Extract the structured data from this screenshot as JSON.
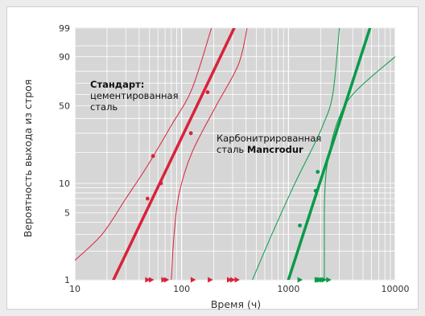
{
  "chart_data": {
    "type": "scatter",
    "title": "",
    "xlabel": "Время (ч)",
    "ylabel": "Вероятность выхода из строя",
    "x_scale": "log",
    "y_scale": "weibull-probability",
    "xlim": [
      10,
      10000
    ],
    "ylim": [
      1,
      99
    ],
    "x_ticks": [
      10,
      100,
      1000,
      10000
    ],
    "y_ticks": [
      1,
      5,
      10,
      50,
      90,
      99
    ],
    "grid": true,
    "annotations": [
      {
        "id": "standard",
        "lines": [
          {
            "text": "Стандарт:",
            "bold": true
          },
          {
            "text": "цементированная",
            "bold": false
          },
          {
            "text": "сталь",
            "bold": false
          }
        ]
      },
      {
        "id": "carbo",
        "lines": [
          {
            "text": "Карбонитрированная",
            "bold": false
          },
          {
            "text": "сталь ",
            "bold": false,
            "suffix": "Mancrodur"
          }
        ]
      }
    ],
    "series": [
      {
        "color": "#d9223a",
        "points": [
          {
            "x": 48,
            "y": 7
          },
          {
            "x": 54,
            "y": 18.5
          },
          {
            "x": 64,
            "y": 10
          },
          {
            "x": 122,
            "y": 30
          },
          {
            "x": 175,
            "y": 62
          }
        ],
        "fit_line": [
          [
            23,
            1
          ],
          [
            310,
            99
          ]
        ],
        "confidence_lower": [
          [
            80,
            1
          ],
          [
            85,
            3
          ],
          [
            95,
            8
          ],
          [
            125,
            20
          ],
          [
            210,
            50
          ],
          [
            340,
            85
          ],
          [
            410,
            99
          ]
        ],
        "confidence_upper": [
          [
            10,
            1.6
          ],
          [
            18,
            3
          ],
          [
            30,
            7
          ],
          [
            48,
            15
          ],
          [
            80,
            35
          ],
          [
            125,
            65
          ],
          [
            190,
            99
          ]
        ],
        "suspended_x": [
          48,
          52,
          68,
          72,
          128,
          185,
          280,
          300,
          330
        ]
      },
      {
        "color": "#0a9a4a",
        "points": [
          {
            "x": 1280,
            "y": 3.7
          },
          {
            "x": 1800,
            "y": 8.4
          },
          {
            "x": 1880,
            "y": 13
          }
        ],
        "fit_line": [
          [
            1000,
            1
          ],
          [
            5800,
            99
          ]
        ],
        "confidence_lower": [
          [
            2170,
            1
          ],
          [
            2170,
            3
          ],
          [
            2180,
            7
          ],
          [
            2300,
            15
          ],
          [
            2800,
            35
          ],
          [
            4000,
            60
          ],
          [
            10000,
            90
          ]
        ],
        "confidence_upper": [
          [
            460,
            1
          ],
          [
            700,
            3
          ],
          [
            1150,
            10
          ],
          [
            1600,
            20
          ],
          [
            2100,
            35
          ],
          [
            2600,
            60
          ],
          [
            3000,
            99
          ]
        ],
        "suspended_x": [
          1280,
          1850,
          1900,
          1960,
          2060,
          2160,
          2380
        ]
      }
    ]
  }
}
